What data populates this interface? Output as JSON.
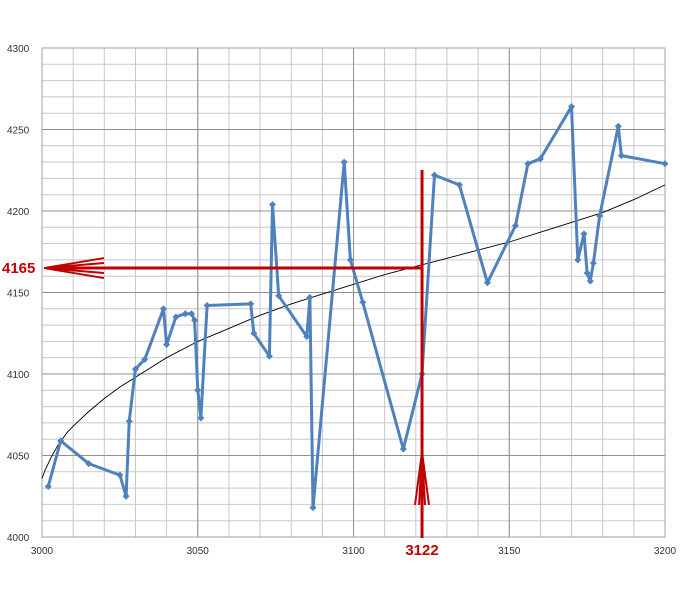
{
  "chart_data": {
    "type": "scatter",
    "title": "",
    "xlabel": "",
    "ylabel": "",
    "xlim": [
      3000,
      3200
    ],
    "ylim": [
      4000,
      4300
    ],
    "x_ticks": [
      3000,
      3050,
      3100,
      3150,
      3200
    ],
    "y_ticks": [
      4000,
      4050,
      4100,
      4150,
      4200,
      4250,
      4300
    ],
    "x_minor_step": 10,
    "y_minor_step": 10,
    "grid": true,
    "colors": {
      "series": "#4f81bd",
      "trend": "#000000",
      "annotation": "#c00000",
      "grid": "#c8c8c8",
      "plot_border": "#a0a0a0"
    },
    "series": [
      {
        "name": "",
        "marker": "diamond",
        "line": true,
        "x": [
          3002,
          3006,
          3015,
          3025,
          3027,
          3028,
          3030,
          3033,
          3039,
          3040,
          3043,
          3046,
          3048,
          3049,
          3050,
          3051,
          3053,
          3067,
          3068,
          3073,
          3074,
          3076,
          3085,
          3086,
          3087,
          3097,
          3099,
          3103,
          3116,
          3122,
          3126,
          3134,
          3143,
          3152,
          3156,
          3160,
          3170,
          3172,
          3174,
          3175,
          3176,
          3177,
          3179,
          3185,
          3186,
          3200
        ],
        "y": [
          4031,
          4059,
          4045,
          4038,
          4025,
          4071,
          4103,
          4109,
          4140,
          4118,
          4135,
          4137,
          4137,
          4133,
          4090,
          4073,
          4142,
          4143,
          4125,
          4111,
          4204,
          4148,
          4123,
          4147,
          4018,
          4230,
          4170,
          4144,
          4054,
          4100,
          4222,
          4216,
          4156,
          4191,
          4229,
          4232,
          4264,
          4170,
          4186,
          4162,
          4157,
          4168,
          4197,
          4252,
          4234,
          4229
        ]
      }
    ],
    "trendline": {
      "type": "logarithmic",
      "x": [
        3000,
        3001,
        3003,
        3005,
        3008,
        3010,
        3015,
        3020,
        3025,
        3030,
        3040,
        3050,
        3060,
        3070,
        3080,
        3090,
        3100,
        3110,
        3120,
        3130,
        3140,
        3150,
        3160,
        3170,
        3180,
        3190,
        3200
      ],
      "y": [
        4036,
        4041,
        4049,
        4056,
        4064,
        4068,
        4077,
        4085,
        4092,
        4098,
        4110,
        4120,
        4128,
        4136,
        4143,
        4149,
        4155,
        4161,
        4166,
        4171,
        4176,
        4181,
        4187,
        4193,
        4199,
        4207,
        4216
      ]
    },
    "annotations": {
      "x_value_label": "3122",
      "y_value_label": "4165",
      "x_value": 3122,
      "y_value": 4165
    }
  }
}
